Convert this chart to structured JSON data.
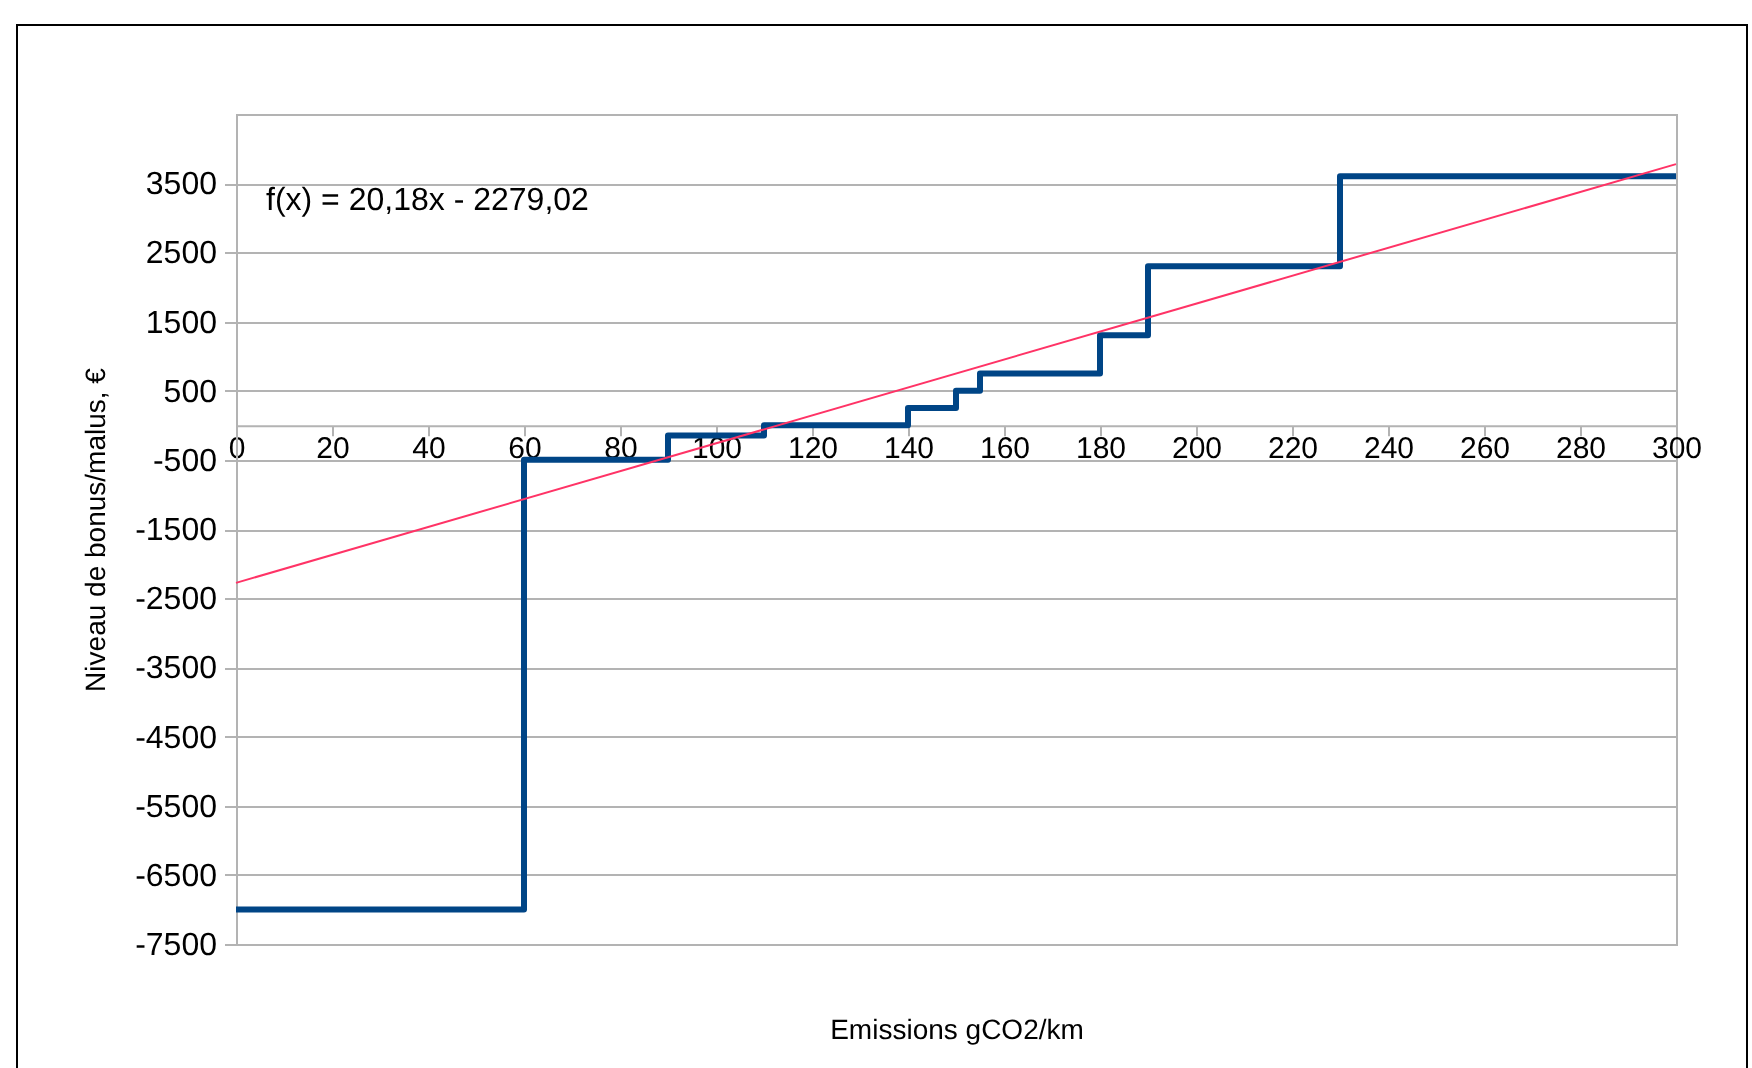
{
  "chart_data": {
    "type": "step",
    "xlabel": "Emissions gCO2/km",
    "ylabel": "Niveau de bonus/malus, €",
    "annotations": [
      "f(x) = 20,18x - 2279,02"
    ],
    "series": [
      {
        "type": "step",
        "color": "#004586",
        "x": [
          0,
          60,
          90,
          110,
          140,
          150,
          155,
          180,
          190,
          230,
          300
        ],
        "values": [
          -7000,
          -500,
          -150,
          0,
          250,
          500,
          750,
          1300,
          2300,
          3600,
          3600
        ]
      },
      {
        "type": "line",
        "color": "#ff3366",
        "x": [
          0,
          300
        ],
        "values": [
          -2279,
          3775
        ]
      }
    ],
    "xlim": [
      0,
      300
    ],
    "xticks": [
      0,
      20,
      40,
      60,
      80,
      100,
      120,
      140,
      160,
      180,
      200,
      220,
      240,
      260,
      280,
      300
    ],
    "ylim": [
      -7500,
      4500
    ],
    "yticks": [
      -7500,
      -6500,
      -5500,
      -4500,
      -3500,
      -2500,
      -1500,
      -500,
      500,
      1500,
      2500,
      3500
    ],
    "grid": "y",
    "marker": "none",
    "line_style": "solid"
  }
}
